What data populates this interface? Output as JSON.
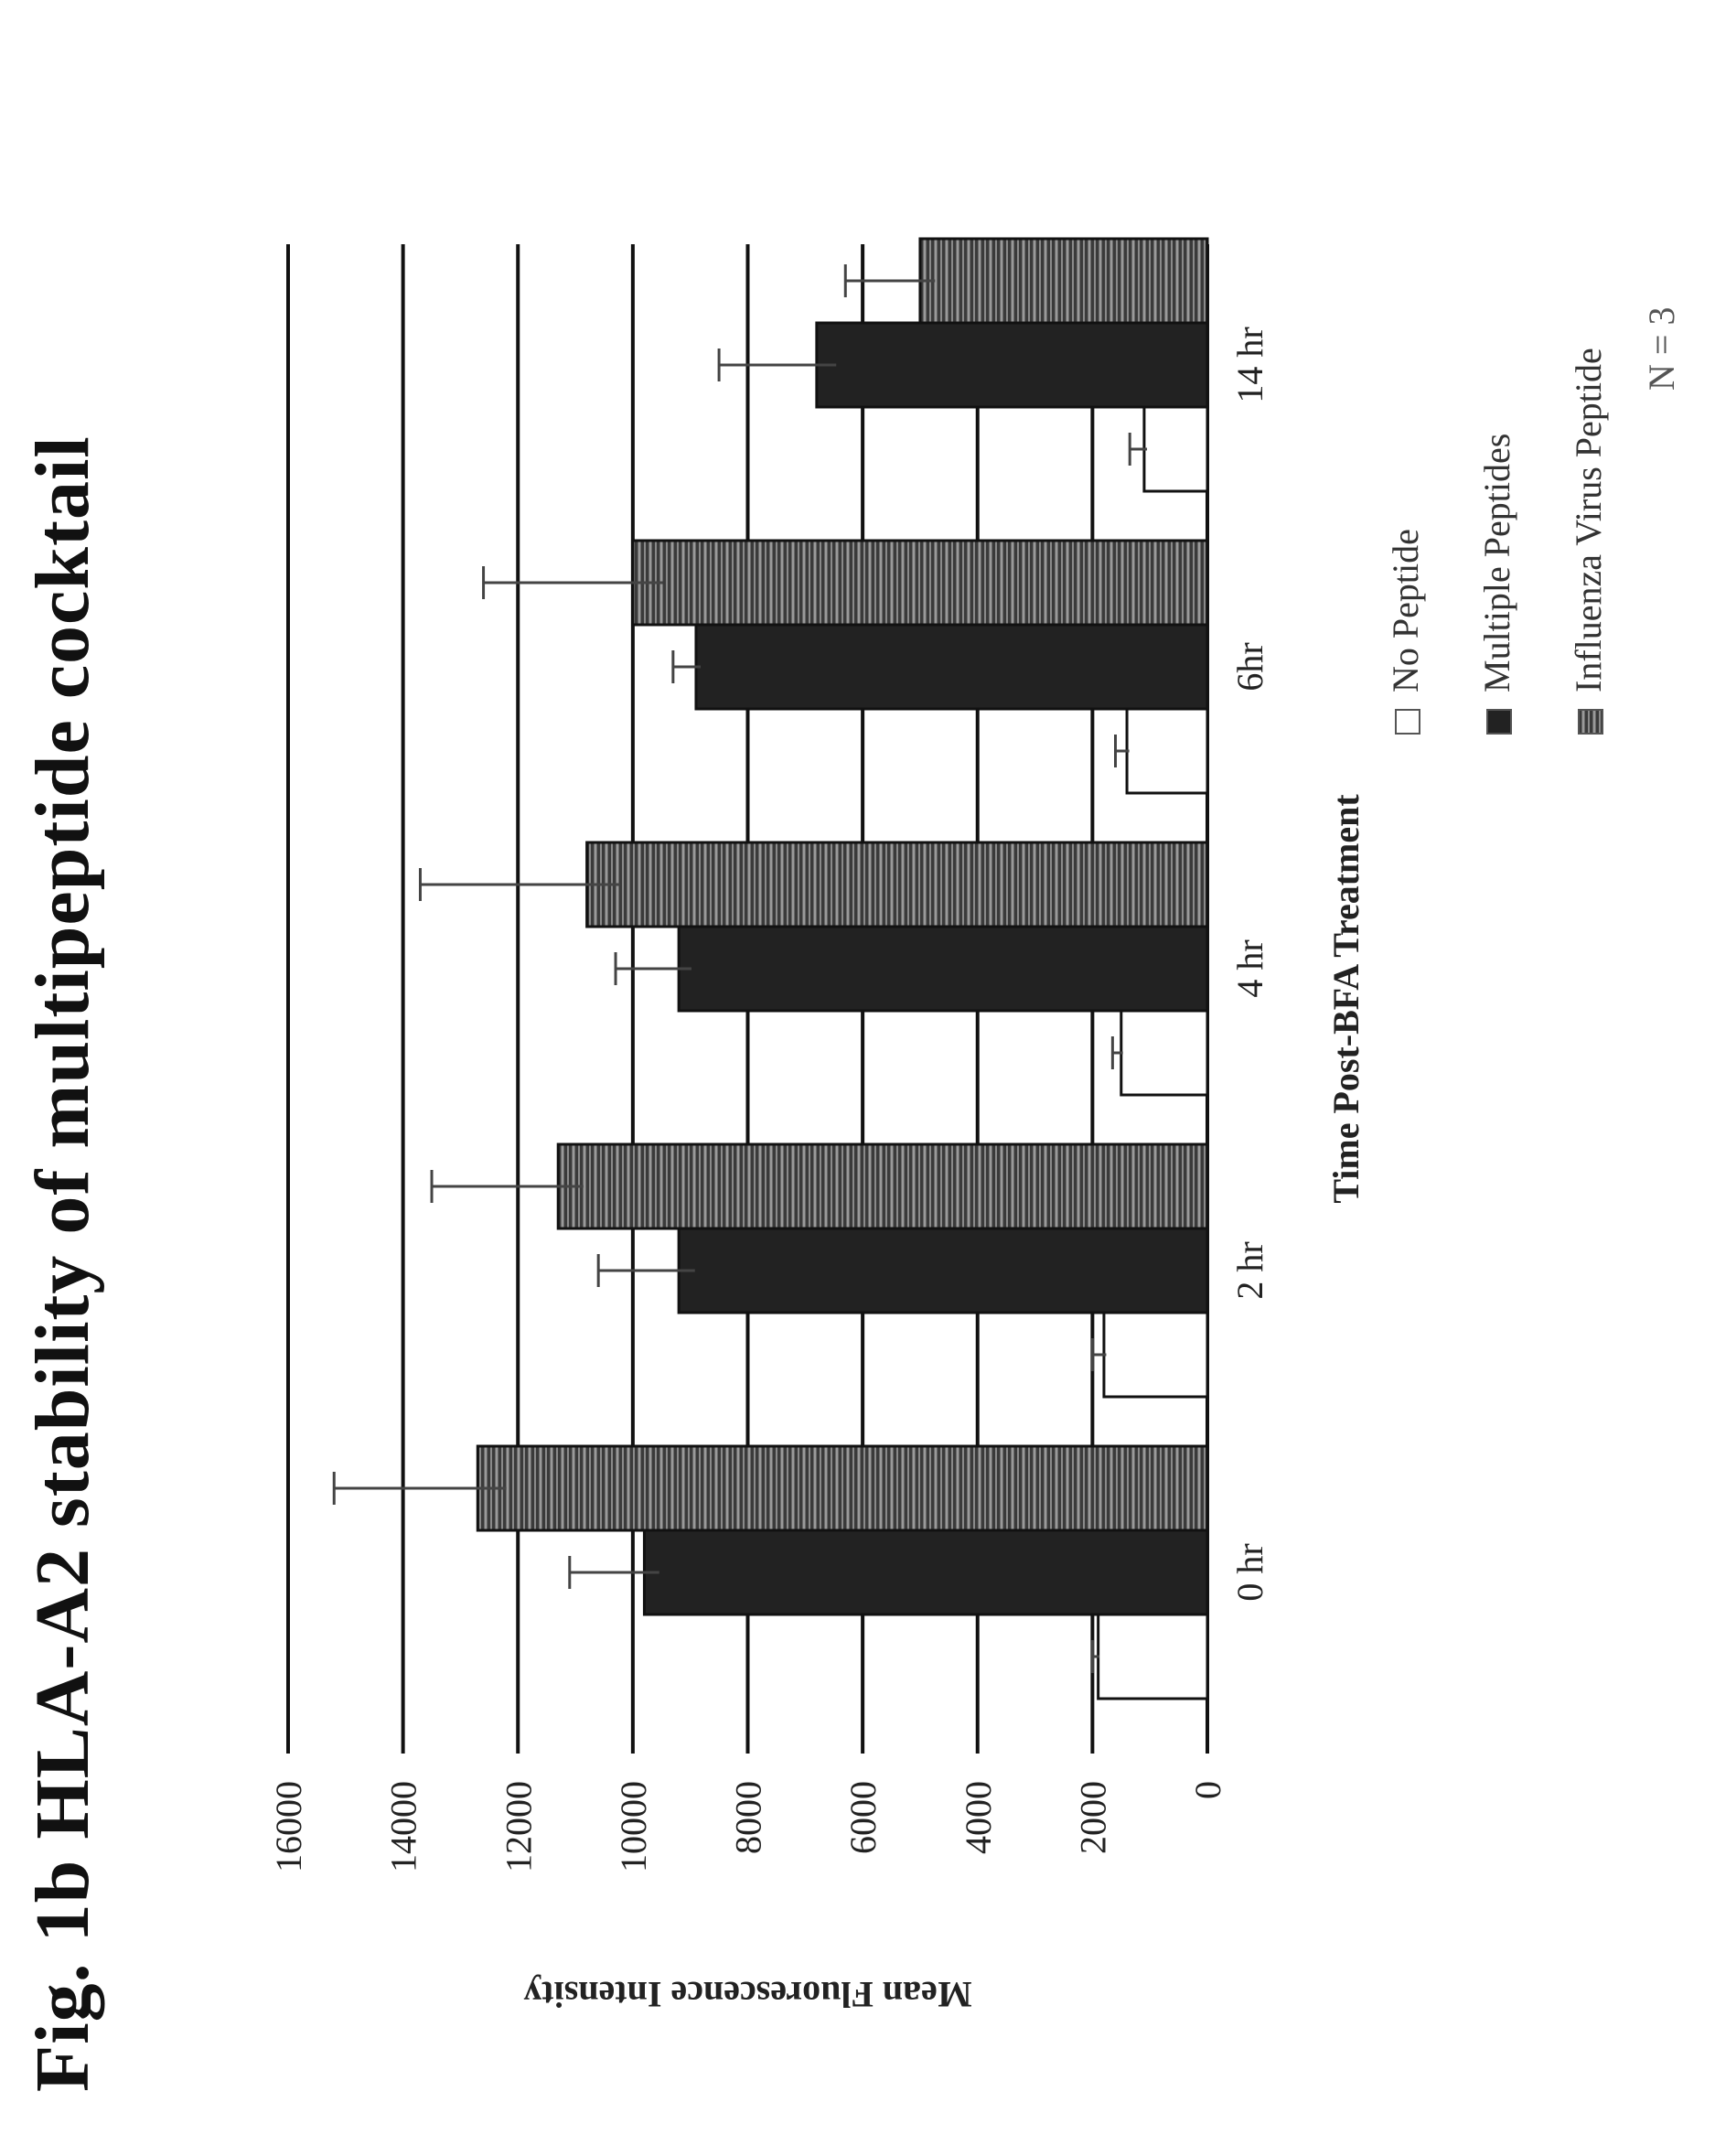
{
  "figure": {
    "title": "Fig. 1b  HLA-A2 stability of multipeptide cocktail"
  },
  "note": "N = 3",
  "chart_data": {
    "type": "bar",
    "title": "Fig. 1b  HLA-A2 stability of multipeptide cocktail",
    "xlabel": "Time Post-BFA Treatment",
    "ylabel": "Mean Fluorescence Intensity",
    "categories": [
      "0 hr",
      "2 hr",
      "4 hr",
      "6hr",
      "14 hr"
    ],
    "ylim": [
      0,
      16000
    ],
    "yticks": [
      "0",
      "2000",
      "4000",
      "6000",
      "8000",
      "10000",
      "12000",
      "14000",
      "16000"
    ],
    "grid": true,
    "legend_position": "top-right",
    "series": [
      {
        "name": "No Peptide",
        "values": [
          1900,
          1800,
          1500,
          1400,
          1100
        ],
        "errors": [
          100,
          200,
          150,
          200,
          250
        ],
        "color": "#ffffff",
        "pattern": "none"
      },
      {
        "name": "Multiple Peptides",
        "values": [
          9800,
          9200,
          9200,
          8900,
          6800
        ],
        "errors": [
          1300,
          1400,
          1100,
          400,
          1700
        ],
        "color": "#222222",
        "pattern": "solid"
      },
      {
        "name": "Influenza Virus Peptide",
        "values": [
          12700,
          11300,
          10800,
          10000,
          5000
        ],
        "errors": [
          2500,
          2200,
          2900,
          2600,
          1300
        ],
        "color": "#444444",
        "pattern": "stripes"
      }
    ]
  }
}
